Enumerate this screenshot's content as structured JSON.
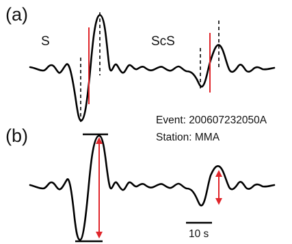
{
  "figure": {
    "panel_a_label": "(a)",
    "panel_b_label": "(b)",
    "phase_s_label": "S",
    "phase_scs_label": "ScS",
    "event_text": "Event: 200607232050A",
    "station_text": "Station: MMA",
    "scale_bar_label": "10 s"
  },
  "colors": {
    "trace": "#000000",
    "highlight": "#e0262b"
  }
}
